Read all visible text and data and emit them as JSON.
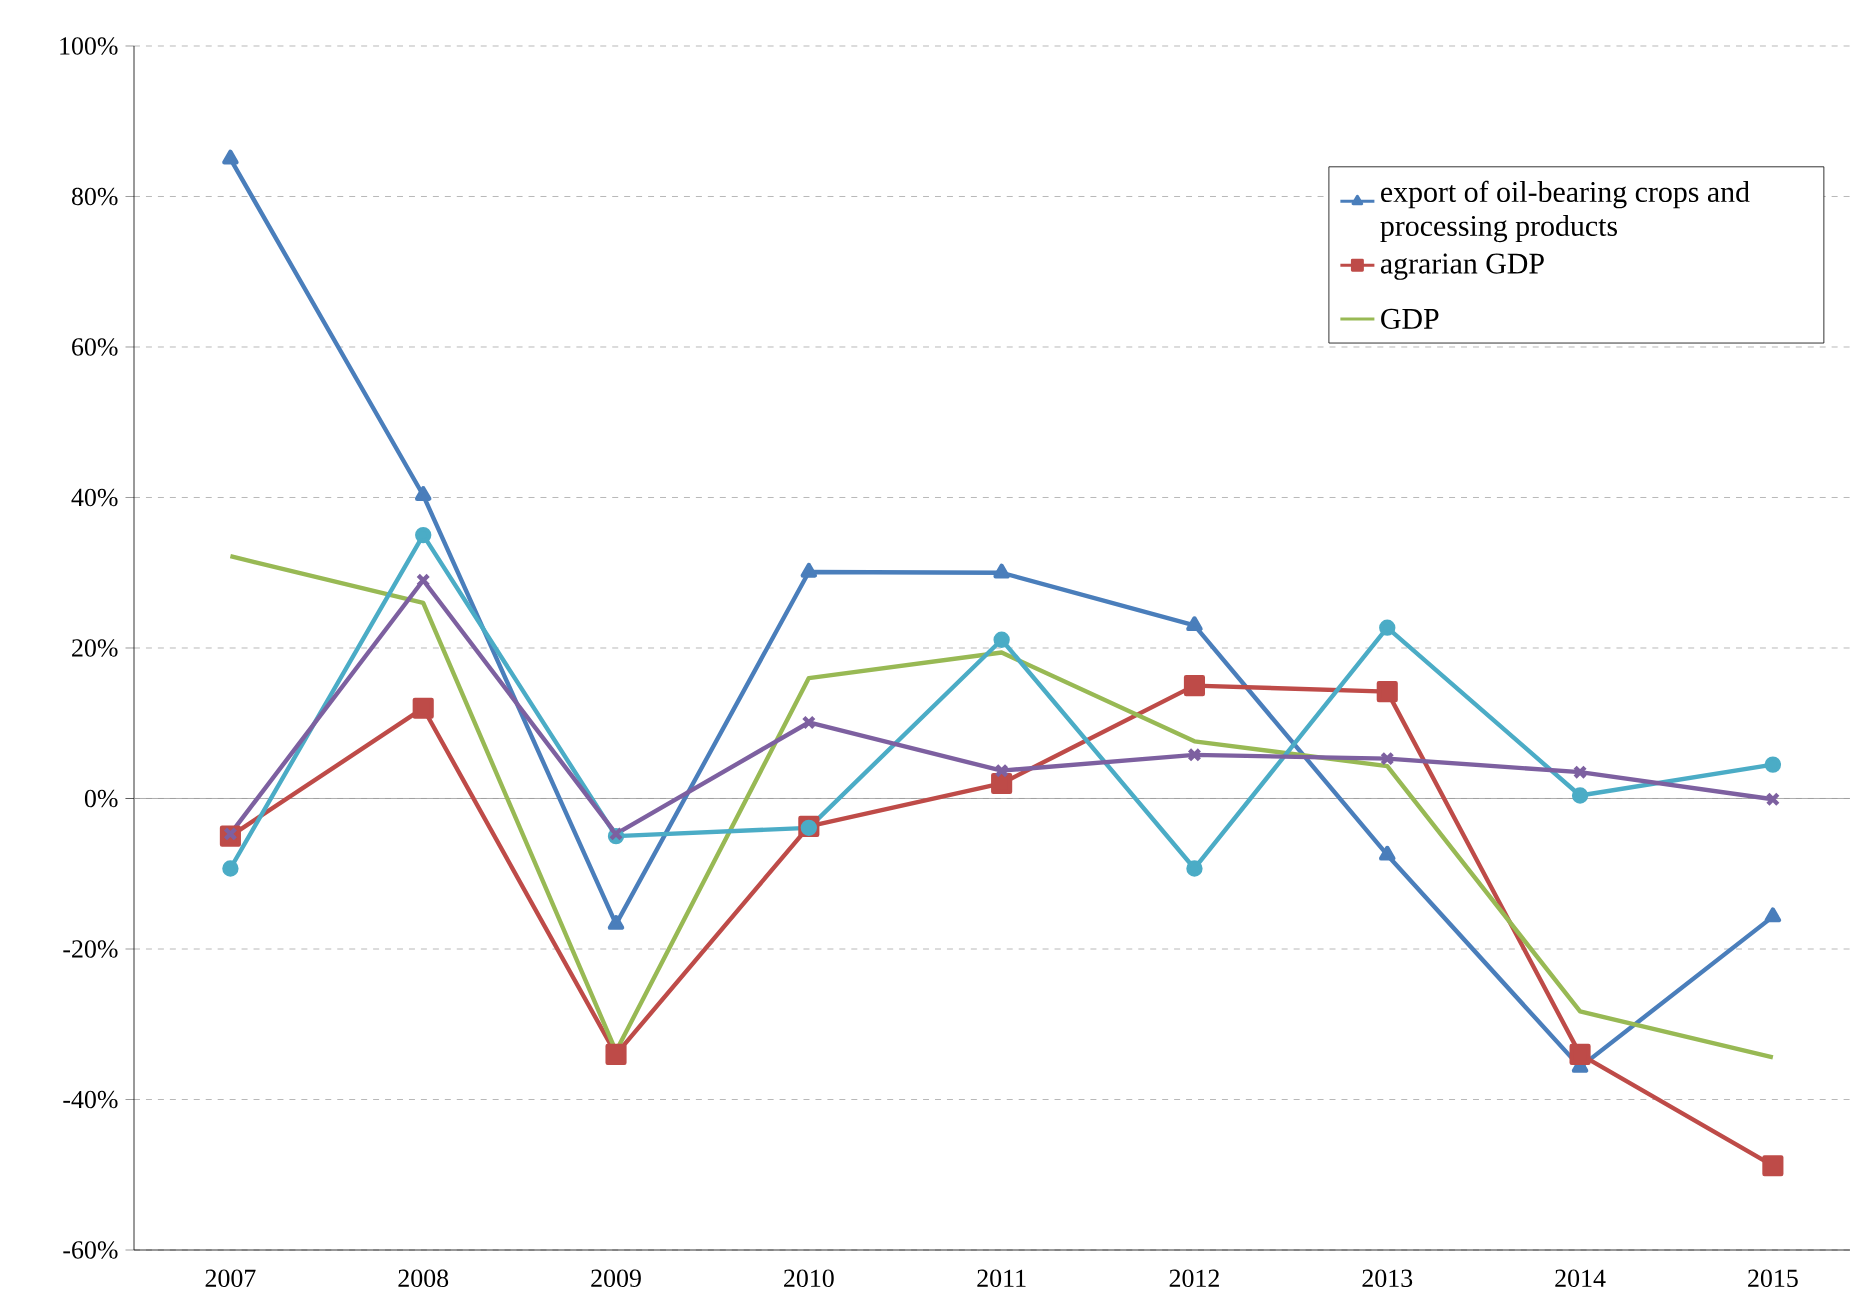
{
  "chart_data": {
    "type": "line",
    "categories": [
      "2007",
      "2008",
      "2009",
      "2010",
      "2011",
      "2012",
      "2013",
      "2014",
      "2015"
    ],
    "series": [
      {
        "name": "export of oil-bearing crops and processing products",
        "color": "#4a7ebb",
        "marker": "triangle",
        "values": [
          85,
          40.3,
          -16.7,
          30.1,
          30,
          23,
          -7.5,
          -35.7,
          -15.7
        ]
      },
      {
        "name": "agrarian GDP",
        "color": "#be4b48",
        "marker": "square",
        "values": [
          -5,
          12,
          -34,
          -3.7,
          2,
          15,
          14.2,
          -34,
          -48.8
        ]
      },
      {
        "name": "GDP",
        "color": "#98b954",
        "marker": "none",
        "values": [
          32.2,
          26,
          -33.6,
          16,
          19.4,
          7.6,
          4.3,
          -28.3,
          -34.4
        ]
      },
      {
        "color": "#4bacc6",
        "marker": "circle",
        "values": [
          -9.3,
          35,
          -5,
          -3.9,
          21.1,
          -9.3,
          22.7,
          0.4,
          4.5
        ]
      },
      {
        "color": "#7d60a0",
        "marker": "cross",
        "values": [
          -4.7,
          29,
          -4.7,
          10.1,
          3.7,
          5.8,
          5.3,
          3.5,
          -0.1
        ]
      }
    ],
    "ylim": [
      -60,
      100
    ],
    "yticks": [
      {
        "value": -60,
        "label": "-60%"
      },
      {
        "value": -40,
        "label": "-40%"
      },
      {
        "value": -20,
        "label": "-20%"
      },
      {
        "value": 0,
        "label": "0%"
      },
      {
        "value": 20,
        "label": "20%"
      },
      {
        "value": 40,
        "label": "40%"
      },
      {
        "value": 60,
        "label": "60%"
      },
      {
        "value": 80,
        "label": "80%"
      },
      {
        "value": 100,
        "label": "100%"
      }
    ],
    "grid": "y",
    "legend": "top right"
  }
}
